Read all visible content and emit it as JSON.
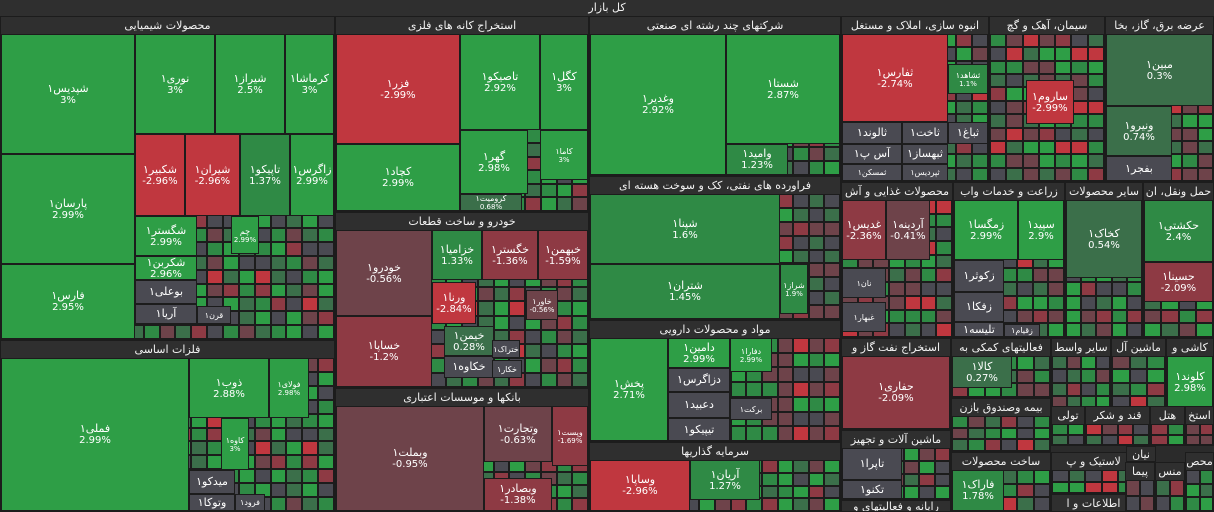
{
  "market_title": "کل بازار",
  "colors": {
    "g3": "#2e9e46",
    "g2": "#2f8a45",
    "g1": "#3b6f4a",
    "n": "#4a4a52",
    "r1": "#6e434a",
    "r2": "#8e3a44",
    "r3": "#c0373f"
  },
  "chart_data": {
    "type": "treemap",
    "title": "کل بازار",
    "sectors": [
      {
        "name": "محصولات شیمیایی",
        "stocks": [
          {
            "name": "شپدیس۱",
            "change": 3
          },
          {
            "name": "نوری۱",
            "change": 3
          },
          {
            "name": "شیراز۱",
            "change": 2.5
          },
          {
            "name": "کرماشا۱",
            "change": 3
          },
          {
            "name": "پارسان۱",
            "change": 2.99
          },
          {
            "name": "شکبیر۱",
            "change": -2.96
          },
          {
            "name": "شیران۱",
            "change": -2.96
          },
          {
            "name": "تاپیکو۱",
            "change": 1.37
          },
          {
            "name": "زاگرس۱",
            "change": 2.99
          },
          {
            "name": "شگستر۱",
            "change": 2.99
          },
          {
            "name": "چم",
            "change": 2.99
          },
          {
            "name": "شکربن۱",
            "change": 2.96
          },
          {
            "name": "بوعلی۱",
            "change": null
          },
          {
            "name": "آریا۱",
            "change": null
          },
          {
            "name": "قرن۱",
            "change": null
          },
          {
            "name": "فارس۱",
            "change": 2.95
          }
        ]
      },
      {
        "name": "فلزات اساسی",
        "stocks": [
          {
            "name": "فملی۱",
            "change": 2.99
          },
          {
            "name": "ذوب۱",
            "change": 2.88
          },
          {
            "name": "فولای۱",
            "change": 2.98
          },
          {
            "name": "کاوه۱",
            "change": 3
          },
          {
            "name": "میدکو۱",
            "change": null
          },
          {
            "name": "وتوکا۱",
            "change": null
          },
          {
            "name": "فرود۱",
            "change": null
          }
        ]
      },
      {
        "name": "استخراج کانه های فلزی",
        "stocks": [
          {
            "name": "فزر۱",
            "change": -2.99
          },
          {
            "name": "تاصیکو۱",
            "change": 2.92
          },
          {
            "name": "کگل۱",
            "change": 3
          },
          {
            "name": "گهر۱",
            "change": 2.98
          },
          {
            "name": "کچاد۱",
            "change": 2.99
          },
          {
            "name": "کرومیت۱",
            "change": 0.68
          },
          {
            "name": "کاما۱",
            "change": 3
          }
        ]
      },
      {
        "name": "خودرو و ساخت قطعات",
        "stocks": [
          {
            "name": "خودرو۱",
            "change": -0.56
          },
          {
            "name": "خزامیا۱",
            "change": 1.33
          },
          {
            "name": "خگستر۱",
            "change": -1.36
          },
          {
            "name": "خبهمن۱",
            "change": -1.59
          },
          {
            "name": "ورنا۱",
            "change": -2.84
          },
          {
            "name": "خاور۱",
            "change": -0.56
          },
          {
            "name": "خساپا۱",
            "change": -1.2
          },
          {
            "name": "خیمن۱",
            "change": 0.28
          },
          {
            "name": "خکاوه۱",
            "change": null
          },
          {
            "name": "ختراک۱",
            "change": null
          },
          {
            "name": "خکار۱",
            "change": null
          }
        ]
      },
      {
        "name": "بانکها و موسسات اعتباری",
        "stocks": [
          {
            "name": "وبملت۱",
            "change": -0.95
          },
          {
            "name": "وتجارت۱",
            "change": -0.63
          },
          {
            "name": "وبصادر۱",
            "change": -1.38
          },
          {
            "name": "وپست۱",
            "change": -1.69
          }
        ]
      },
      {
        "name": "شرکتهای چند رشته ای صنعتی",
        "stocks": [
          {
            "name": "وغدیر۱",
            "change": 2.92
          },
          {
            "name": "شستا۱",
            "change": 2.87
          },
          {
            "name": "وامید۱",
            "change": 1.23
          }
        ]
      },
      {
        "name": "فراورده های نفتی، کک و سوخت هسته ای",
        "stocks": [
          {
            "name": "شپنا۱",
            "change": 1.6
          },
          {
            "name": "شتران۱",
            "change": 1.45
          },
          {
            "name": "شراز۱",
            "change": 1.9
          }
        ]
      },
      {
        "name": "مواد و محصولات دارویی",
        "stocks": [
          {
            "name": "پخش۱",
            "change": 2.71
          },
          {
            "name": "دامین۱",
            "change": 2.99
          },
          {
            "name": "دفارا۱",
            "change": 2.99
          },
          {
            "name": "دزاگرس۱",
            "change": null
          },
          {
            "name": "دعبید۱",
            "change": null
          },
          {
            "name": "برکت۱",
            "change": null
          },
          {
            "name": "تیپیکو۱",
            "change": null
          }
        ]
      },
      {
        "name": "سرمایه گذاریها",
        "stocks": [
          {
            "name": "وساپا۱",
            "change": -2.96
          },
          {
            "name": "آریان۱",
            "change": 1.27
          }
        ]
      },
      {
        "name": "انبوه سازی، املاک و مستغل",
        "stocks": [
          {
            "name": "ثفارس۱",
            "change": -2.74
          },
          {
            "name": "ثالوند۱",
            "change": null
          },
          {
            "name": "ثاخت۱",
            "change": null
          },
          {
            "name": "ثباغ۱",
            "change": null
          },
          {
            "name": "آس پ۱",
            "change": null
          },
          {
            "name": "ثبهساز۱",
            "change": null
          },
          {
            "name": "ثمسکن۱",
            "change": null
          },
          {
            "name": "ثپردیس۱",
            "change": null
          },
          {
            "name": "ثشاهد۱",
            "change": 1.1
          }
        ]
      },
      {
        "name": "سیمان، آهک و گچ",
        "stocks": [
          {
            "name": "ساروم۱",
            "change": -2.99
          }
        ]
      },
      {
        "name": "عرضه برق، گاز، بخا",
        "stocks": [
          {
            "name": "مبین۱",
            "change": 0.3
          },
          {
            "name": "ونیرو۱",
            "change": 0.74
          },
          {
            "name": "بفجر۱",
            "change": null
          }
        ]
      },
      {
        "name": "محصولات غذایی و آش",
        "stocks": [
          {
            "name": "غدیس۱",
            "change": -2.36
          },
          {
            "name": "آردینه۱",
            "change": -0.41
          },
          {
            "name": "نان۱",
            "change": null
          },
          {
            "name": "غبهار۱",
            "change": null
          }
        ]
      },
      {
        "name": "زراعت و خدمات واب",
        "stocks": [
          {
            "name": "زمگسا۱",
            "change": 2.99
          },
          {
            "name": "سپید۱",
            "change": 2.9
          },
          {
            "name": "زکوثر۱",
            "change": null
          },
          {
            "name": "زفکا۱",
            "change": null
          },
          {
            "name": "تلیسه۱",
            "change": null
          },
          {
            "name": "زقیام۱",
            "change": null
          }
        ]
      },
      {
        "name": "سایر محصولات",
        "stocks": [
          {
            "name": "کخاک۱",
            "change": 0.54
          }
        ]
      },
      {
        "name": "حمل ونقل، ان",
        "stocks": [
          {
            "name": "حکشتی۱",
            "change": 2.4
          },
          {
            "name": "حسینا۱",
            "change": -2.09
          }
        ]
      },
      {
        "name": "استخراج نفت گاز و",
        "stocks": [
          {
            "name": "حفاری۱",
            "change": -2.09
          }
        ]
      },
      {
        "name": "فعالیتهای کمکی به",
        "stocks": [
          {
            "name": "کالا۱",
            "change": 0.27
          }
        ]
      },
      {
        "name": "ماشین آلات و تجهیز",
        "stocks": [
          {
            "name": "تاپرا۱",
            "change": null
          },
          {
            "name": "تکنو۱",
            "change": null
          }
        ]
      },
      {
        "name": "رایانه و فعالیتهای و",
        "stocks": []
      },
      {
        "name": "بیمه وصندوق بازن",
        "stocks": []
      },
      {
        "name": "ساخت محصولات",
        "stocks": [
          {
            "name": "فاراک۱",
            "change": 1.78
          }
        ]
      },
      {
        "name": "سایر واسط",
        "stocks": []
      },
      {
        "name": "ماشین آل",
        "stocks": []
      },
      {
        "name": "کاشی و",
        "stocks": [
          {
            "name": "کلوند۱",
            "change": 2.98
          }
        ]
      },
      {
        "name": "قند و شکر",
        "stocks": []
      },
      {
        "name": "هتل",
        "stocks": []
      },
      {
        "name": "استخ",
        "stocks": []
      },
      {
        "name": "لاستیک و پ",
        "stocks": []
      },
      {
        "name": "تولی",
        "stocks": []
      },
      {
        "name": "اطلاعات و ا",
        "stocks": []
      },
      {
        "name": "محص",
        "stocks": []
      },
      {
        "name": "منس",
        "stocks": []
      },
      {
        "name": "پیما",
        "stocks": []
      },
      {
        "name": "نیان",
        "stocks": []
      }
    ]
  }
}
